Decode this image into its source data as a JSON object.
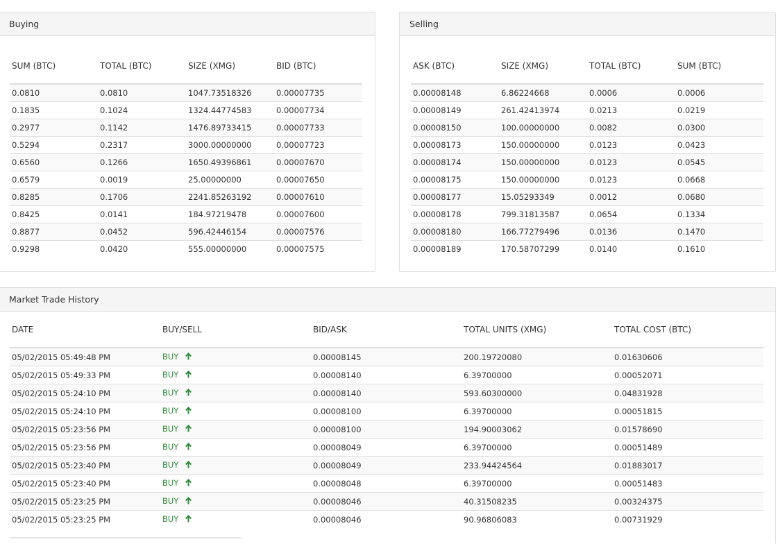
{
  "buying": {
    "title": "Buying",
    "headers": [
      "SUM (BTC)",
      "TOTAL (BTC)",
      "SIZE (XMG)",
      "BID (BTC)"
    ],
    "rows": [
      [
        "0.0810",
        "0.0810",
        "1047.73518326",
        "0.00007735"
      ],
      [
        "0.1835",
        "0.1024",
        "1324.44774583",
        "0.00007734"
      ],
      [
        "0.2977",
        "0.1142",
        "1476.89733415",
        "0.00007733"
      ],
      [
        "0.5294",
        "0.2317",
        "3000.00000000",
        "0.00007723"
      ],
      [
        "0.6560",
        "0.1266",
        "1650.49396861",
        "0.00007670"
      ],
      [
        "0.6579",
        "0.0019",
        "25.00000000",
        "0.00007650"
      ],
      [
        "0.8285",
        "0.1706",
        "2241.85263192",
        "0.00007610"
      ],
      [
        "0.8425",
        "0.0141",
        "184.97219478",
        "0.00007600"
      ],
      [
        "0.8877",
        "0.0452",
        "596.42446154",
        "0.00007576"
      ],
      [
        "0.9298",
        "0.0420",
        "555.00000000",
        "0.00007575"
      ]
    ]
  },
  "selling": {
    "title": "Selling",
    "headers": [
      "ASK (BTC)",
      "SIZE (XMG)",
      "TOTAL (BTC)",
      "SUM (BTC)"
    ],
    "rows": [
      [
        "0.00008148",
        "6.86224668",
        "0.0006",
        "0.0006"
      ],
      [
        "0.00008149",
        "261.42413974",
        "0.0213",
        "0.0219"
      ],
      [
        "0.00008150",
        "100.00000000",
        "0.0082",
        "0.0300"
      ],
      [
        "0.00008173",
        "150.00000000",
        "0.0123",
        "0.0423"
      ],
      [
        "0.00008174",
        "150.00000000",
        "0.0123",
        "0.0545"
      ],
      [
        "0.00008175",
        "150.00000000",
        "0.0123",
        "0.0668"
      ],
      [
        "0.00008177",
        "15.05293349",
        "0.0012",
        "0.0680"
      ],
      [
        "0.00008178",
        "799.31813587",
        "0.0654",
        "0.1334"
      ],
      [
        "0.00008180",
        "166.77279496",
        "0.0136",
        "0.1470"
      ],
      [
        "0.00008189",
        "170.58707299",
        "0.0140",
        "0.1610"
      ]
    ]
  },
  "history": {
    "title": "Market Trade History",
    "headers": [
      "DATE",
      "BUY/SELL",
      "BID/ASK",
      "TOTAL UNITS (XMG)",
      "TOTAL COST (BTC)"
    ],
    "arrow_icon": "arrow-up-icon",
    "buy_color": "#2e8b3a",
    "rows": [
      {
        "date": "05/02/2015 05:49:48 PM",
        "type": "BUY",
        "price": "0.00008145",
        "units": "200.19720080",
        "cost": "0.01630606"
      },
      {
        "date": "05/02/2015 05:49:33 PM",
        "type": "BUY",
        "price": "0.00008140",
        "units": "6.39700000",
        "cost": "0.00052071"
      },
      {
        "date": "05/02/2015 05:24:10 PM",
        "type": "BUY",
        "price": "0.00008140",
        "units": "593.60300000",
        "cost": "0.04831928"
      },
      {
        "date": "05/02/2015 05:24:10 PM",
        "type": "BUY",
        "price": "0.00008100",
        "units": "6.39700000",
        "cost": "0.00051815"
      },
      {
        "date": "05/02/2015 05:23:56 PM",
        "type": "BUY",
        "price": "0.00008100",
        "units": "194.90003062",
        "cost": "0.01578690"
      },
      {
        "date": "05/02/2015 05:23:56 PM",
        "type": "BUY",
        "price": "0.00008049",
        "units": "6.39700000",
        "cost": "0.00051489"
      },
      {
        "date": "05/02/2015 05:23:40 PM",
        "type": "BUY",
        "price": "0.00008049",
        "units": "233.94424564",
        "cost": "0.01883017"
      },
      {
        "date": "05/02/2015 05:23:40 PM",
        "type": "BUY",
        "price": "0.00008048",
        "units": "6.39700000",
        "cost": "0.00051483"
      },
      {
        "date": "05/02/2015 05:23:25 PM",
        "type": "BUY",
        "price": "0.00008046",
        "units": "40.31508235",
        "cost": "0.00324375"
      },
      {
        "date": "05/02/2015 05:23:25 PM",
        "type": "BUY",
        "price": "0.00008046",
        "units": "90.96806083",
        "cost": "0.00731929"
      }
    ]
  }
}
